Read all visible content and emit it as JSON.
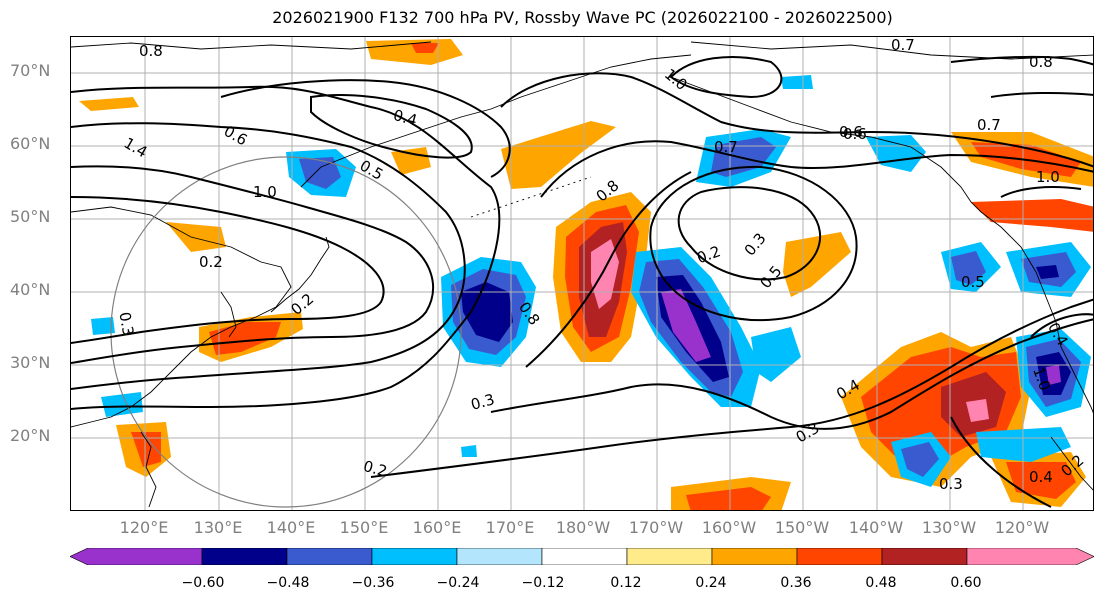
{
  "title": "2026021900 F132 700 hPa PV, Rossby Wave PC (2026022100 - 2026022500)",
  "lat_labels": [
    "70°N",
    "60°N",
    "50°N",
    "40°N",
    "30°N",
    "20°N"
  ],
  "lon_labels": [
    "120°E",
    "130°E",
    "140°E",
    "150°E",
    "160°E",
    "170°E",
    "180°W",
    "170°W",
    "160°W",
    "150°W",
    "140°W",
    "130°W",
    "120°W"
  ],
  "colorbar": {
    "colors": [
      "#9932cc",
      "#00008b",
      "#3a5bcf",
      "#00bfff",
      "#b3e5fc",
      "#ffffff",
      "#ffeb8a",
      "#ffa500",
      "#ff4500",
      "#b22222",
      "#ff85b0"
    ],
    "tick_labels": [
      "−0.60",
      "−0.48",
      "−0.36",
      "−0.24",
      "−0.12",
      "0.12",
      "0.24",
      "0.36",
      "0.48",
      "0.60"
    ]
  },
  "contour_labels": [
    "0.8",
    "1.0",
    "0.7",
    "0.8",
    "0.6",
    "0.4",
    "0.6",
    "1.4",
    "0.5",
    "1.0",
    "0.7",
    "0.6",
    "0.7",
    "1.0",
    "0.8",
    "0.2",
    "0.3",
    "0.5",
    "0.2",
    "0.3",
    "0.8",
    "0.2",
    "0.5",
    "0.4",
    "0.3",
    "0.3",
    "0.2",
    "0.3",
    "0.4",
    "0.4",
    "1.0",
    "0.2"
  ]
}
